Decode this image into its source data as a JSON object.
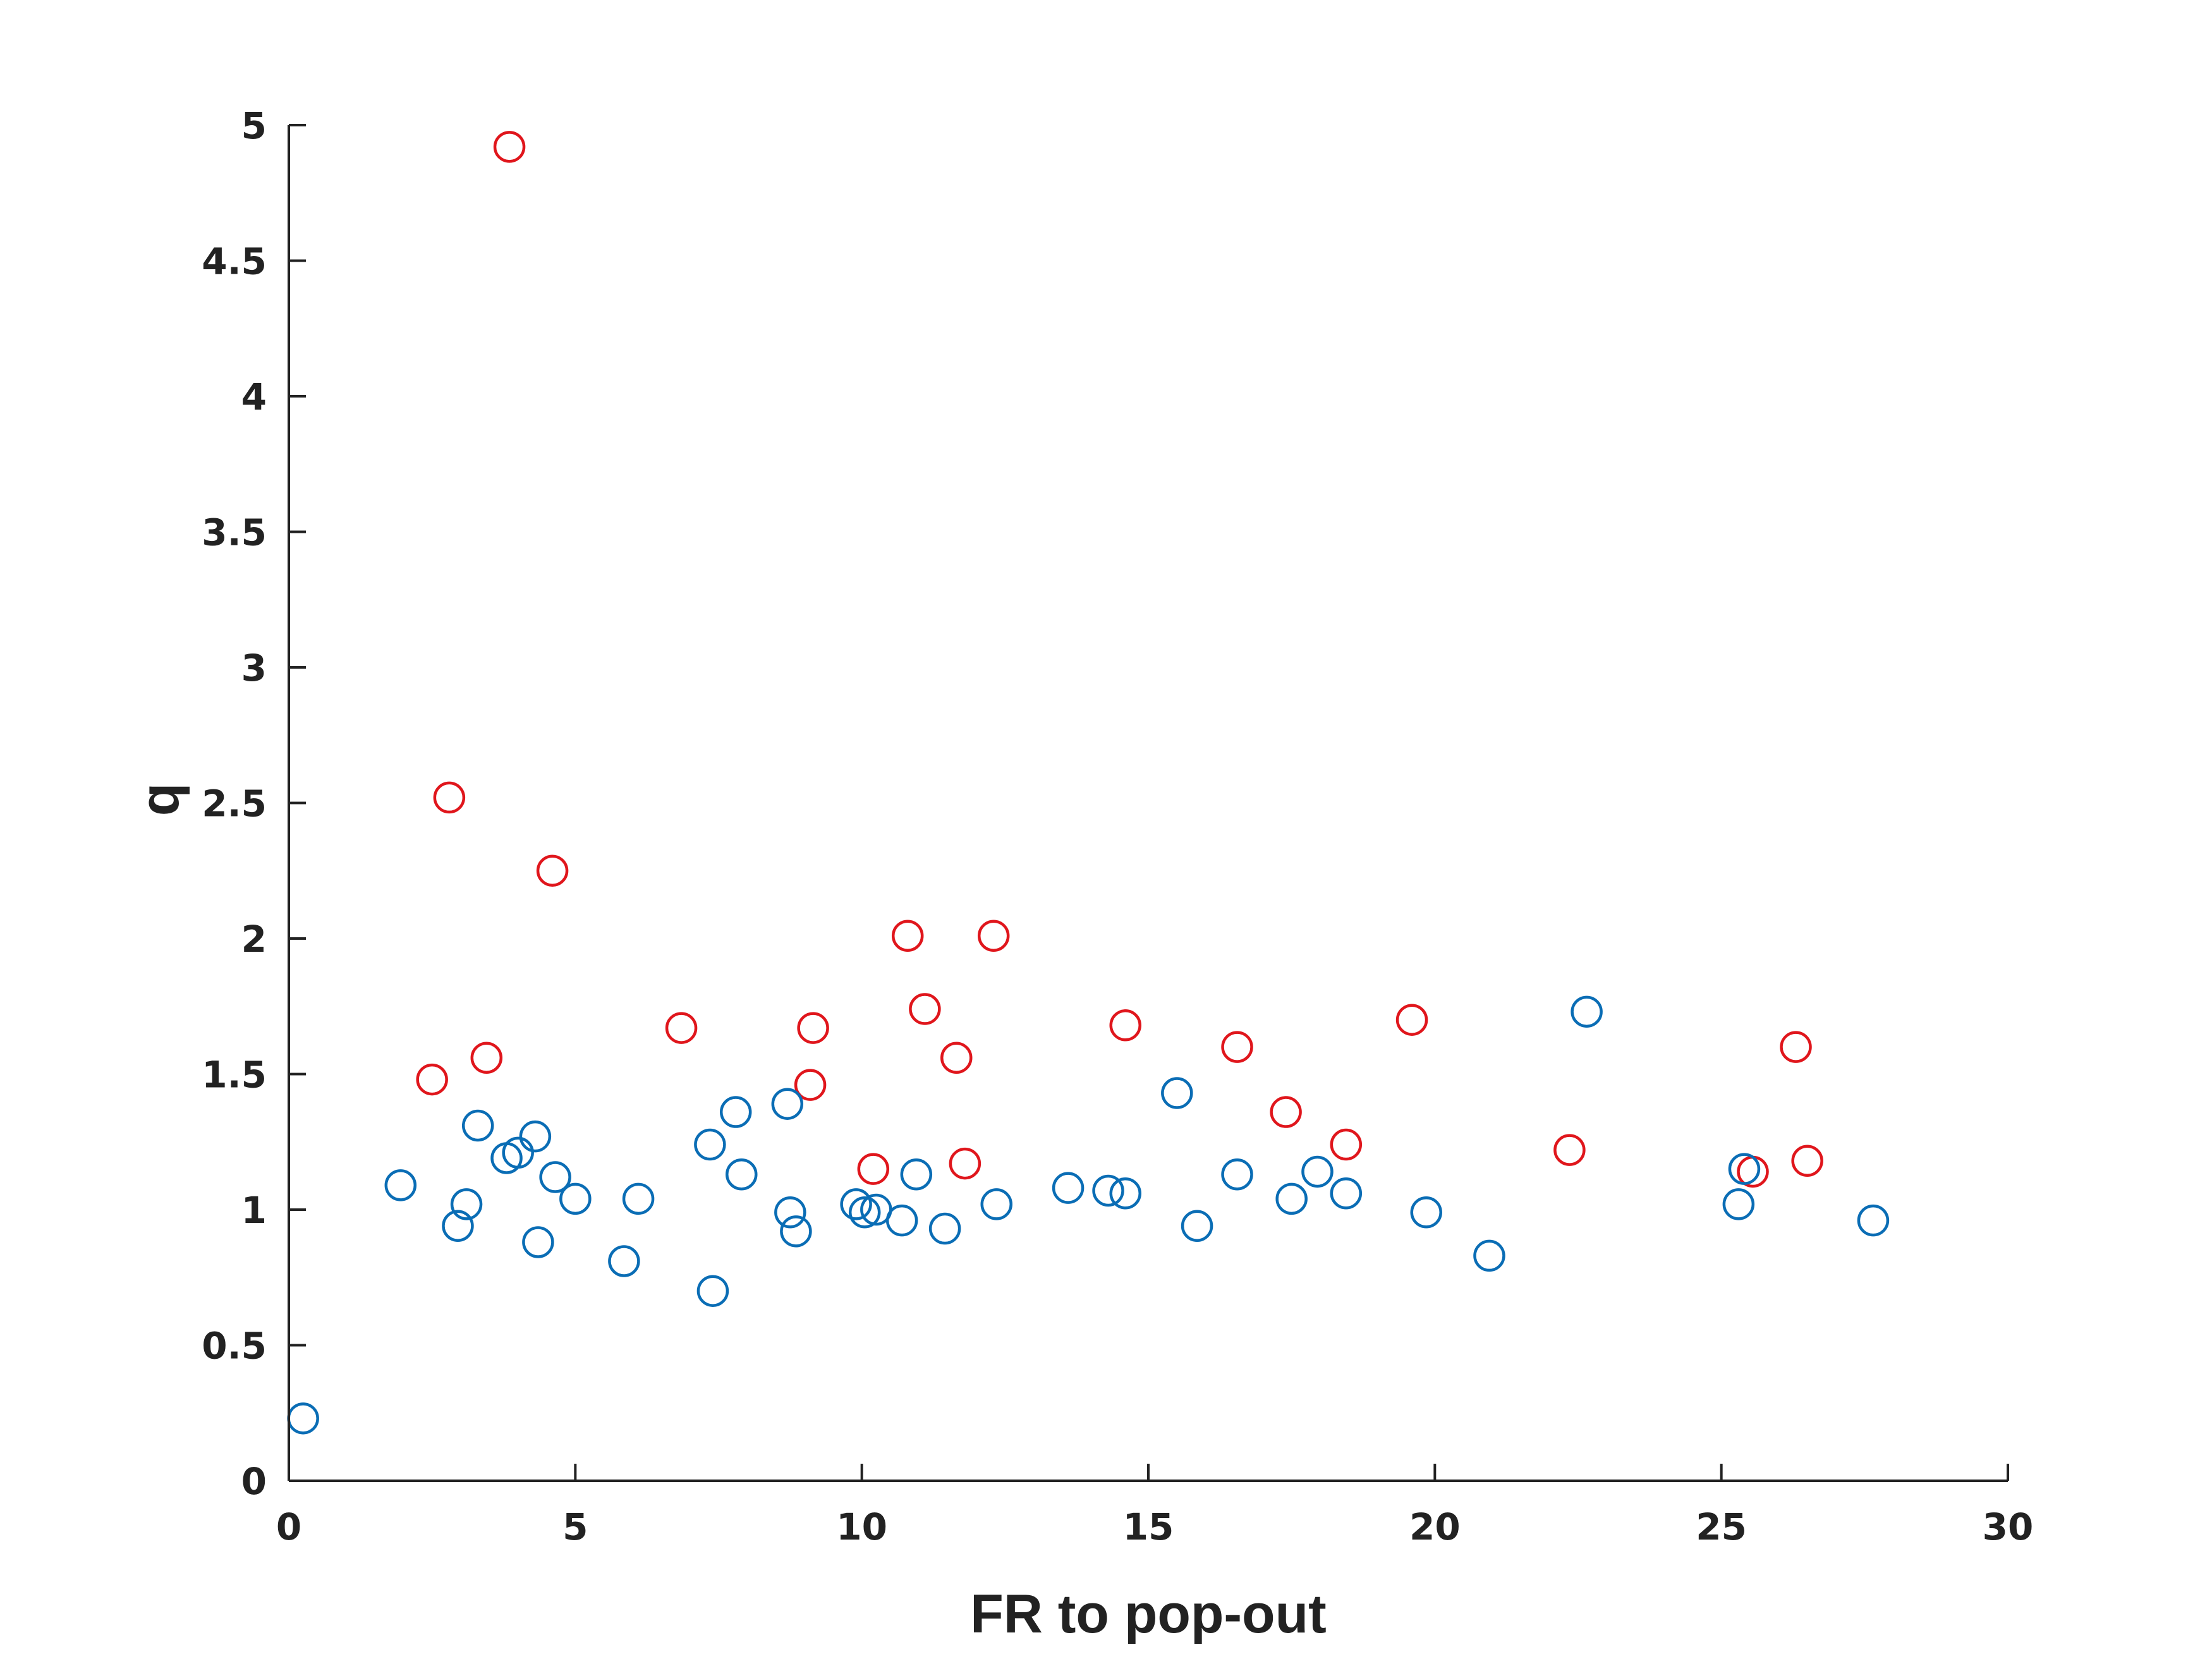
{
  "chart_data": {
    "type": "scatter",
    "title": "",
    "xlabel": "FR to pop-out",
    "ylabel": "q",
    "xlim": [
      0,
      30
    ],
    "ylim": [
      0,
      5
    ],
    "xticks": [
      0,
      5,
      10,
      15,
      20,
      25,
      30
    ],
    "yticks": [
      0,
      0.5,
      1,
      1.5,
      2,
      2.5,
      3,
      3.5,
      4,
      4.5,
      5
    ],
    "grid": false,
    "legend": "none",
    "colors": {
      "blue": "#0a6db5",
      "red": "#e0161c",
      "axis": "#222222"
    },
    "series": [
      {
        "color": "red",
        "points": [
          [
            3.85,
            4.92
          ],
          [
            2.8,
            2.52
          ],
          [
            4.6,
            2.25
          ],
          [
            2.5,
            1.48
          ],
          [
            3.45,
            1.56
          ],
          [
            6.85,
            1.67
          ],
          [
            9.15,
            1.67
          ],
          [
            9.1,
            1.46
          ],
          [
            10.8,
            2.01
          ],
          [
            12.3,
            2.01
          ],
          [
            11.1,
            1.74
          ],
          [
            11.65,
            1.56
          ],
          [
            10.2,
            1.15
          ],
          [
            11.8,
            1.17
          ],
          [
            14.6,
            1.68
          ],
          [
            16.55,
            1.6
          ],
          [
            17.4,
            1.36
          ],
          [
            18.45,
            1.24
          ],
          [
            19.6,
            1.7
          ],
          [
            22.35,
            1.22
          ],
          [
            26.3,
            1.6
          ],
          [
            25.55,
            1.14
          ],
          [
            26.5,
            1.18
          ]
        ]
      },
      {
        "color": "blue",
        "points": [
          [
            0.25,
            0.23
          ],
          [
            1.95,
            1.09
          ],
          [
            2.95,
            0.94
          ],
          [
            3.1,
            1.02
          ],
          [
            3.3,
            1.31
          ],
          [
            3.8,
            1.19
          ],
          [
            4.0,
            1.21
          ],
          [
            4.3,
            1.27
          ],
          [
            4.35,
            0.88
          ],
          [
            4.65,
            1.12
          ],
          [
            5.0,
            1.04
          ],
          [
            5.85,
            0.81
          ],
          [
            6.1,
            1.04
          ],
          [
            7.35,
            1.24
          ],
          [
            7.4,
            0.7
          ],
          [
            7.8,
            1.36
          ],
          [
            7.9,
            1.13
          ],
          [
            8.7,
            1.39
          ],
          [
            8.75,
            0.99
          ],
          [
            8.85,
            0.92
          ],
          [
            9.9,
            1.02
          ],
          [
            10.05,
            0.99
          ],
          [
            10.25,
            1.0
          ],
          [
            10.7,
            0.96
          ],
          [
            10.95,
            1.13
          ],
          [
            11.45,
            0.93
          ],
          [
            12.35,
            1.02
          ],
          [
            13.6,
            1.08
          ],
          [
            14.3,
            1.07
          ],
          [
            14.6,
            1.06
          ],
          [
            15.5,
            1.43
          ],
          [
            15.85,
            0.94
          ],
          [
            16.55,
            1.13
          ],
          [
            17.5,
            1.04
          ],
          [
            17.95,
            1.14
          ],
          [
            18.45,
            1.06
          ],
          [
            19.85,
            0.99
          ],
          [
            20.95,
            0.83
          ],
          [
            22.65,
            1.73
          ],
          [
            25.3,
            1.02
          ],
          [
            25.4,
            1.15
          ],
          [
            27.65,
            0.96
          ]
        ]
      }
    ]
  }
}
